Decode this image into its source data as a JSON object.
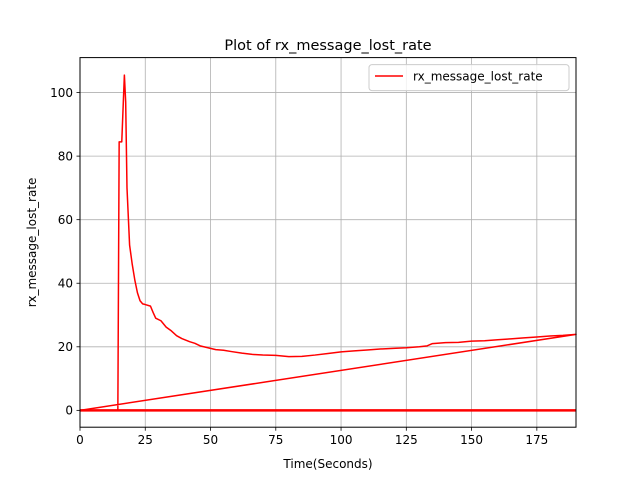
{
  "chart_data": {
    "type": "line",
    "title": "Plot of rx_message_lost_rate",
    "xlabel": "Time(Seconds)",
    "ylabel": "rx_message_lost_rate",
    "xlim": [
      0,
      190
    ],
    "ylim": [
      -5.3,
      111
    ],
    "xticks": [
      0,
      25,
      50,
      75,
      100,
      125,
      150,
      175
    ],
    "yticks": [
      0,
      20,
      40,
      60,
      80,
      100
    ],
    "grid": true,
    "legend_position": "top-right",
    "series": [
      {
        "name": "rx_message_lost_rate",
        "color": "#ff0000",
        "x": [
          0,
          14,
          14.5,
          15,
          16,
          16.5,
          17,
          17.5,
          18,
          19,
          20,
          21,
          22,
          23,
          24,
          25,
          27,
          28,
          29,
          31,
          33,
          35,
          37,
          39,
          42,
          44,
          46,
          49,
          52,
          55,
          58,
          62,
          66,
          70,
          75,
          80,
          85,
          90,
          95,
          100,
          105,
          110,
          115,
          120,
          125,
          130,
          133,
          135,
          140,
          145,
          150,
          155,
          160,
          165,
          170,
          175,
          180,
          185,
          190,
          0,
          190
        ],
        "y": [
          0,
          0,
          0,
          84.5,
          84.5,
          95,
          105.5,
          97,
          70,
          52,
          46,
          41,
          37,
          34.5,
          33.5,
          33.3,
          32.8,
          30.8,
          29,
          28.2,
          26.2,
          25,
          23.5,
          22.6,
          21.6,
          21.1,
          20.3,
          19.7,
          19.1,
          18.9,
          18.5,
          18,
          17.6,
          17.4,
          17.3,
          16.9,
          17,
          17.4,
          17.9,
          18.4,
          18.7,
          19,
          19.3,
          19.5,
          19.7,
          20,
          20.3,
          21,
          21.3,
          21.4,
          21.8,
          21.9,
          22.2,
          22.5,
          22.8,
          23.1,
          23.4,
          23.6,
          23.9,
          0,
          0
        ]
      }
    ]
  }
}
